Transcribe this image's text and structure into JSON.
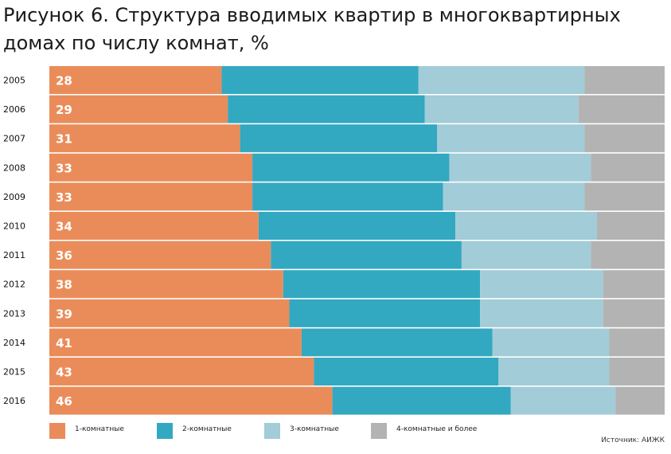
{
  "title": "Рисунок 6. Структура вводимых квартир в многоквартирных домах по числу комнат, %",
  "source": "Источник: АИЖК",
  "colors": {
    "one_room": "#ea8c5a",
    "two_room": "#33a8c1",
    "three_room": "#a1ccd8",
    "four_plus": "#b3b3b3"
  },
  "chart_data": {
    "type": "bar",
    "orientation": "horizontal",
    "stacked": true,
    "percent": true,
    "categories": [
      "2005",
      "2006",
      "2007",
      "2008",
      "2009",
      "2010",
      "2011",
      "2012",
      "2013",
      "2014",
      "2015",
      "2016"
    ],
    "series": [
      {
        "name": "1-комнатные",
        "color": "#ea8c5a",
        "values": [
          28,
          29,
          31,
          33,
          33,
          34,
          36,
          38,
          39,
          41,
          43,
          46
        ],
        "labels_shown": true
      },
      {
        "name": "2-комнатные",
        "color": "#33a8c1",
        "values": [
          32,
          32,
          32,
          32,
          31,
          32,
          31,
          32,
          31,
          31,
          30,
          29
        ]
      },
      {
        "name": "3-комнатные",
        "color": "#a1ccd8",
        "values": [
          27,
          25,
          24,
          23,
          23,
          23,
          21,
          20,
          20,
          19,
          18,
          17
        ]
      },
      {
        "name": "4-комнатные и более",
        "color": "#b3b3b3",
        "values": [
          13,
          14,
          13,
          12,
          13,
          11,
          12,
          10,
          10,
          9,
          9,
          8
        ]
      }
    ],
    "xlim": [
      0,
      100
    ],
    "grid": false,
    "legend_position": "bottom-left"
  }
}
